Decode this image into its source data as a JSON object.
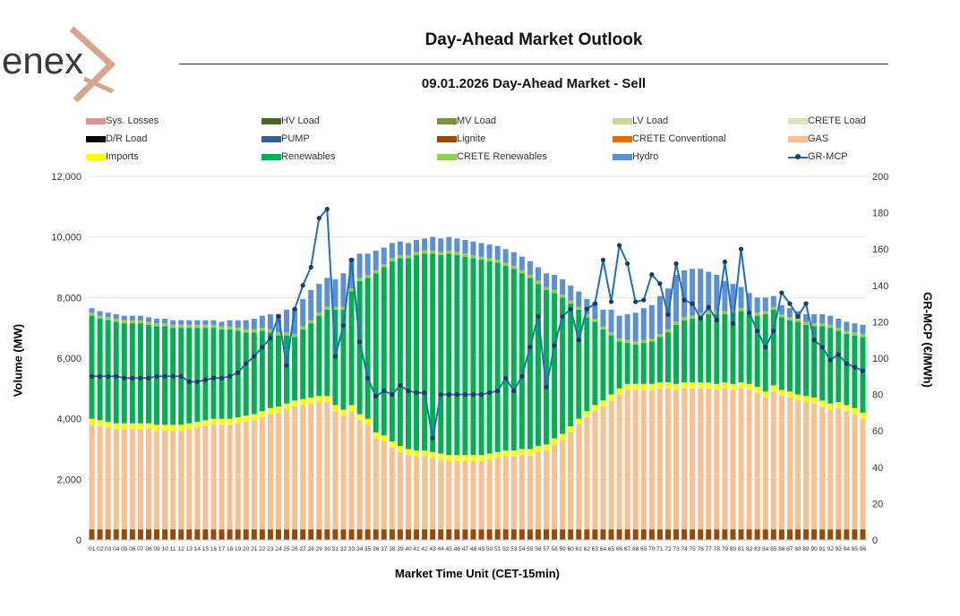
{
  "header": {
    "logo_text": "enex",
    "title": "Day-Ahead Market Outlook",
    "subtitle": "09.01.2026  Day-Ahead Market - Sell"
  },
  "colors": {
    "sys_losses": "#d99594",
    "hv_load": "#4f6228",
    "mv_load": "#77933c",
    "lv_load": "#c3d69b",
    "crete_load": "#d7e4bd",
    "dr_load": "#000000",
    "pump": "#376092",
    "lignite": "#984807",
    "crete_conventional": "#e46c0a",
    "gas": "#fac090",
    "imports": "#ffff00",
    "renewables": "#00b050",
    "crete_renewables": "#92d050",
    "hydro": "#5b8fd6",
    "gr_mcp": "#1f6fb4",
    "gr_mcp_marker": "#1f3864",
    "logo_orange": "#d9a58a",
    "logo_gray": "#3a3a3a"
  },
  "chart_data": {
    "type": "bar",
    "x_label": "Market Time Unit (CET-15min)",
    "y_label": "Volume (MW)",
    "y2_label": "GR-MCP (€/MWh)",
    "ylim": [
      0,
      12000
    ],
    "y2lim": [
      0,
      200
    ],
    "y_ticks": [
      "0",
      "2,000",
      "4,000",
      "6,000",
      "8,000",
      "10,000",
      "12,000"
    ],
    "y2_ticks": [
      "0",
      "20",
      "40",
      "60",
      "80",
      "100",
      "120",
      "140",
      "160",
      "180",
      "200"
    ],
    "legend": [
      {
        "key": "sys_losses",
        "label": "Sys. Losses",
        "kind": "bar"
      },
      {
        "key": "hv_load",
        "label": "HV Load",
        "kind": "bar"
      },
      {
        "key": "mv_load",
        "label": "MV Load",
        "kind": "bar"
      },
      {
        "key": "lv_load",
        "label": "LV Load",
        "kind": "bar"
      },
      {
        "key": "crete_load",
        "label": "CRETE Load",
        "kind": "bar"
      },
      {
        "key": "dr_load",
        "label": "D/R Load",
        "kind": "bar"
      },
      {
        "key": "pump",
        "label": "PUMP",
        "kind": "bar"
      },
      {
        "key": "lignite",
        "label": "Lignite",
        "kind": "bar"
      },
      {
        "key": "crete_conventional",
        "label": "CRETE Conventional",
        "kind": "bar"
      },
      {
        "key": "gas",
        "label": "GAS",
        "kind": "bar"
      },
      {
        "key": "imports",
        "label": "Imports",
        "kind": "bar"
      },
      {
        "key": "renewables",
        "label": "Renewables",
        "kind": "bar"
      },
      {
        "key": "crete_renewables",
        "label": "CRETE Renewables",
        "kind": "bar"
      },
      {
        "key": "hydro",
        "label": "Hydro",
        "kind": "bar"
      },
      {
        "key": "gr_mcp",
        "label": "GR-MCP",
        "kind": "line"
      }
    ],
    "categories": [
      "01",
      "02",
      "03",
      "04",
      "05",
      "06",
      "07",
      "08",
      "09",
      "10",
      "11",
      "12",
      "13",
      "14",
      "15",
      "16",
      "17",
      "18",
      "19",
      "20",
      "21",
      "22",
      "23",
      "24",
      "25",
      "26",
      "27",
      "28",
      "29",
      "30",
      "31",
      "32",
      "33",
      "34",
      "35",
      "36",
      "37",
      "38",
      "39",
      "40",
      "41",
      "42",
      "43",
      "44",
      "45",
      "46",
      "47",
      "48",
      "49",
      "50",
      "51",
      "52",
      "53",
      "54",
      "55",
      "56",
      "57",
      "58",
      "59",
      "60",
      "61",
      "62",
      "63",
      "64",
      "65",
      "66",
      "67",
      "68",
      "69",
      "70",
      "71",
      "72",
      "73",
      "74",
      "75",
      "76",
      "77",
      "78",
      "79",
      "80",
      "81",
      "82",
      "83",
      "84",
      "85",
      "86",
      "87",
      "88",
      "89",
      "90",
      "91",
      "92",
      "93",
      "94",
      "95",
      "96"
    ],
    "series": [
      {
        "name": "Lignite",
        "key": "lignite",
        "values": [
          350,
          350,
          350,
          350,
          350,
          350,
          350,
          350,
          350,
          350,
          350,
          350,
          350,
          350,
          350,
          350,
          350,
          350,
          350,
          350,
          350,
          350,
          350,
          350,
          350,
          350,
          350,
          350,
          350,
          350,
          350,
          350,
          350,
          350,
          350,
          350,
          350,
          350,
          350,
          350,
          350,
          350,
          350,
          350,
          350,
          350,
          350,
          350,
          350,
          350,
          350,
          350,
          350,
          350,
          350,
          350,
          350,
          350,
          350,
          350,
          350,
          350,
          350,
          350,
          350,
          350,
          350,
          350,
          350,
          350,
          350,
          350,
          350,
          350,
          350,
          350,
          350,
          350,
          350,
          350,
          350,
          350,
          350,
          350,
          350,
          350,
          350,
          350,
          350,
          350,
          350,
          350,
          350,
          350,
          350,
          350
        ]
      },
      {
        "name": "GAS",
        "key": "gas",
        "values": [
          3450,
          3400,
          3350,
          3300,
          3300,
          3300,
          3300,
          3300,
          3250,
          3250,
          3250,
          3250,
          3300,
          3350,
          3400,
          3450,
          3450,
          3450,
          3500,
          3550,
          3600,
          3700,
          3800,
          3850,
          3950,
          4050,
          4100,
          4150,
          4200,
          4200,
          3900,
          3750,
          3900,
          3600,
          3450,
          3000,
          2900,
          2700,
          2550,
          2450,
          2400,
          2400,
          2350,
          2300,
          2250,
          2250,
          2250,
          2250,
          2250,
          2300,
          2350,
          2400,
          2400,
          2450,
          2450,
          2550,
          2600,
          2800,
          2950,
          3200,
          3450,
          3700,
          3900,
          4050,
          4250,
          4450,
          4600,
          4600,
          4600,
          4600,
          4650,
          4650,
          4600,
          4650,
          4650,
          4650,
          4650,
          4600,
          4650,
          4600,
          4650,
          4600,
          4500,
          4350,
          4550,
          4400,
          4350,
          4250,
          4200,
          4150,
          4050,
          3950,
          4000,
          3900,
          3800,
          3650
        ]
      },
      {
        "name": "Imports",
        "key": "imports",
        "values": [
          200,
          200,
          200,
          200,
          200,
          200,
          200,
          200,
          200,
          200,
          200,
          200,
          200,
          200,
          200,
          200,
          200,
          200,
          200,
          200,
          200,
          200,
          200,
          200,
          200,
          200,
          200,
          200,
          200,
          200,
          200,
          200,
          200,
          200,
          200,
          200,
          200,
          200,
          200,
          200,
          200,
          200,
          200,
          200,
          200,
          200,
          200,
          200,
          200,
          200,
          200,
          200,
          200,
          200,
          200,
          200,
          200,
          200,
          200,
          200,
          200,
          200,
          200,
          200,
          200,
          200,
          200,
          200,
          200,
          200,
          200,
          200,
          200,
          200,
          200,
          200,
          200,
          200,
          200,
          200,
          200,
          200,
          200,
          200,
          200,
          200,
          200,
          200,
          200,
          200,
          200,
          200,
          200,
          200,
          200,
          200
        ]
      },
      {
        "name": "Renewables",
        "key": "renewables",
        "values": [
          3400,
          3350,
          3350,
          3350,
          3300,
          3300,
          3300,
          3250,
          3250,
          3250,
          3200,
          3200,
          3150,
          3100,
          3050,
          3000,
          2950,
          2950,
          2850,
          2750,
          2700,
          2650,
          2500,
          2350,
          2250,
          2100,
          2300,
          2450,
          2650,
          2850,
          3150,
          3300,
          3750,
          4400,
          4650,
          5250,
          5550,
          5950,
          6200,
          6300,
          6450,
          6500,
          6550,
          6550,
          6650,
          6600,
          6550,
          6500,
          6450,
          6350,
          6250,
          6100,
          6000,
          5800,
          5650,
          5350,
          5100,
          4800,
          4500,
          4050,
          3600,
          3100,
          2750,
          2350,
          1950,
          1550,
          1350,
          1300,
          1350,
          1400,
          1500,
          1650,
          1950,
          2050,
          2100,
          2200,
          2250,
          2300,
          2250,
          2350,
          2350,
          2300,
          2350,
          2550,
          2500,
          2400,
          2350,
          2400,
          2350,
          2350,
          2450,
          2500,
          2350,
          2350,
          2400,
          2500
        ]
      },
      {
        "name": "CRETE Renewables",
        "key": "crete_renewables",
        "values": [
          100,
          100,
          100,
          100,
          100,
          100,
          100,
          100,
          100,
          100,
          100,
          100,
          100,
          100,
          100,
          100,
          100,
          100,
          100,
          100,
          100,
          100,
          100,
          100,
          100,
          100,
          100,
          100,
          100,
          100,
          100,
          100,
          100,
          100,
          100,
          100,
          100,
          100,
          100,
          100,
          100,
          100,
          100,
          100,
          100,
          100,
          100,
          100,
          100,
          100,
          100,
          100,
          100,
          100,
          100,
          100,
          100,
          100,
          100,
          100,
          100,
          100,
          100,
          100,
          100,
          100,
          100,
          100,
          100,
          100,
          100,
          100,
          100,
          100,
          100,
          100,
          100,
          100,
          100,
          100,
          100,
          100,
          100,
          100,
          100,
          100,
          100,
          100,
          100,
          100,
          100,
          100,
          100,
          100,
          100,
          100
        ]
      },
      {
        "name": "Hydro",
        "key": "hydro",
        "values": [
          150,
          150,
          150,
          150,
          150,
          150,
          150,
          150,
          150,
          150,
          150,
          150,
          150,
          150,
          150,
          150,
          150,
          200,
          250,
          300,
          350,
          400,
          500,
          600,
          750,
          850,
          900,
          1000,
          950,
          950,
          900,
          1100,
          1000,
          800,
          700,
          650,
          550,
          500,
          450,
          400,
          400,
          400,
          450,
          450,
          450,
          450,
          450,
          450,
          450,
          450,
          450,
          450,
          450,
          450,
          450,
          450,
          450,
          500,
          500,
          500,
          500,
          500,
          550,
          550,
          750,
          750,
          850,
          950,
          1050,
          1100,
          1250,
          1350,
          1550,
          1550,
          1550,
          1450,
          1300,
          1200,
          1000,
          850,
          700,
          600,
          500,
          450,
          350,
          300,
          300,
          250,
          250,
          300,
          300,
          300,
          300,
          300,
          300,
          300
        ]
      }
    ],
    "line": {
      "name": "GR-MCP",
      "values": [
        90,
        90,
        90,
        90,
        89,
        89,
        89,
        89,
        90,
        90,
        90,
        90,
        87,
        87,
        88,
        89,
        89,
        90,
        92,
        97,
        101,
        106,
        111,
        123,
        96,
        127,
        140,
        150,
        177,
        182,
        101,
        118,
        154,
        109,
        89,
        79,
        82,
        80,
        85,
        82,
        81,
        81,
        56,
        80,
        80,
        80,
        80,
        80,
        80,
        81,
        82,
        89,
        82,
        90,
        106,
        123,
        84,
        107,
        123,
        127,
        110,
        127,
        130,
        154,
        131,
        162,
        152,
        131,
        132,
        146,
        141,
        124,
        152,
        132,
        130,
        122,
        128,
        121,
        153,
        119,
        160,
        125,
        115,
        106,
        115,
        136,
        130,
        123,
        130,
        110,
        106,
        99,
        102,
        97,
        95,
        93
      ]
    }
  }
}
